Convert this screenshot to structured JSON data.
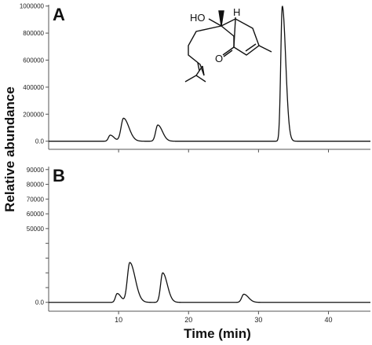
{
  "chart_data": [
    {
      "type": "line",
      "panel_label": "A",
      "xlim": [
        0,
        46
      ],
      "ylim": [
        -60000,
        1010000
      ],
      "x_ticks": [
        10,
        20,
        30,
        40
      ],
      "y_ticks": [
        0,
        200000,
        400000,
        600000,
        800000,
        1000000
      ],
      "y_tick_labels": [
        "0.0",
        "200000",
        "400000",
        "600000",
        "800000",
        "1000000"
      ],
      "baseline": 0,
      "peaks": [
        {
          "x": 8.8,
          "y": 45000,
          "w": 0.25
        },
        {
          "x": 10.7,
          "y": 170000,
          "w": 0.35
        },
        {
          "x": 15.6,
          "y": 120000,
          "w": 0.3
        },
        {
          "x": 33.4,
          "y": 1000000,
          "w": 0.22
        }
      ],
      "structure": {
        "hydroxyl_label": "HO",
        "hydrogen_label": "H",
        "carbonyl_label": "O"
      }
    },
    {
      "type": "line",
      "panel_label": "B",
      "xlim": [
        0,
        46
      ],
      "ylim": [
        -6000,
        92000
      ],
      "x_ticks": [
        10,
        20,
        30,
        40
      ],
      "x_tick_labels": [
        "10",
        "20",
        "30",
        "40"
      ],
      "y_ticks": [
        0,
        10000,
        20000,
        30000,
        40000,
        50000,
        60000,
        70000,
        80000,
        90000
      ],
      "y_tick_labels": [
        "0.0",
        "",
        "",
        "",
        "",
        "50000",
        "60000",
        "70000",
        "80000",
        "90000"
      ],
      "baseline": 0,
      "peaks": [
        {
          "x": 9.8,
          "y": 6000,
          "w": 0.25
        },
        {
          "x": 11.6,
          "y": 27000,
          "w": 0.35
        },
        {
          "x": 16.3,
          "y": 20000,
          "w": 0.3
        },
        {
          "x": 27.9,
          "y": 5500,
          "w": 0.3
        }
      ]
    }
  ],
  "axes": {
    "ylabel": "Relative abundance",
    "xlabel": "Time (min)"
  }
}
